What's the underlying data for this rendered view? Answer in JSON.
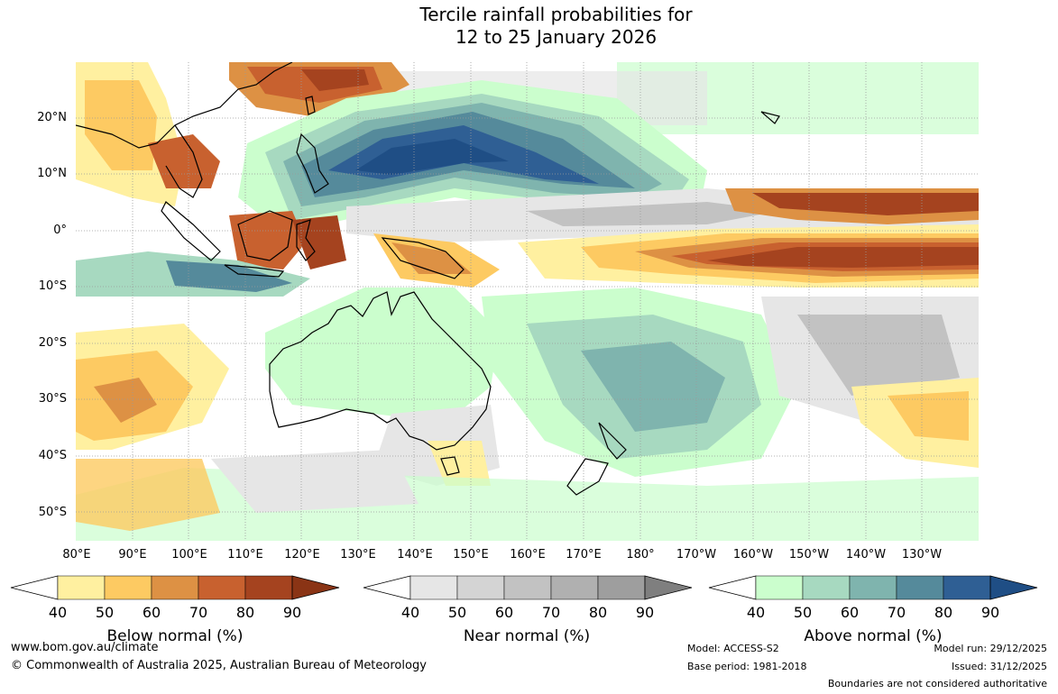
{
  "title": {
    "line1": "Tercile rainfall probabilities for",
    "line2": "12 to 25 January 2026"
  },
  "map": {
    "lat_labels": [
      "20°N",
      "10°N",
      "0°",
      "10°S",
      "20°S",
      "30°S",
      "40°S",
      "50°S"
    ],
    "lon_labels": [
      "80°E",
      "90°E",
      "100°E",
      "110°E",
      "120°E",
      "130°E",
      "140°E",
      "150°E",
      "160°E",
      "170°E",
      "180°",
      "170°W",
      "160°W",
      "150°W",
      "140°W",
      "130°W"
    ],
    "extent": {
      "lon_min": 80,
      "lon_max": 240,
      "lat_min": -55,
      "lat_max": 30
    }
  },
  "legends": [
    {
      "title": "Below normal (%)",
      "ticks": [
        "40",
        "50",
        "60",
        "70",
        "80",
        "90"
      ],
      "colors": [
        "#fff0a0",
        "#fdca62",
        "#dd9144",
        "#c8612f",
        "#a5431f",
        "#8a3415"
      ]
    },
    {
      "title": "Near normal (%)",
      "ticks": [
        "40",
        "50",
        "60",
        "70",
        "80",
        "90"
      ],
      "colors": [
        "#e6e6e6",
        "#d4d4d4",
        "#c2c2c2",
        "#b0b0b0",
        "#9e9e9e",
        "#7f7f7f"
      ]
    },
    {
      "title": "Above normal (%)",
      "ticks": [
        "40",
        "50",
        "60",
        "70",
        "80",
        "90"
      ],
      "colors": [
        "#cbfecd",
        "#a7d9c0",
        "#7fb4ae",
        "#558a9b",
        "#2f5f94",
        "#1f4e85"
      ]
    }
  ],
  "footer": {
    "website": "www.bom.gov.au/climate",
    "copyright": "© Commonwealth of Australia 2025, Australian Bureau of Meteorology",
    "model": "Model: ACCESS-S2",
    "base_period": "Base period: 1981-2018",
    "model_run": "Model run: 29/12/2025",
    "issued": "Issued: 31/12/2025",
    "disclaimer": "Boundaries are not considered authoritative"
  }
}
